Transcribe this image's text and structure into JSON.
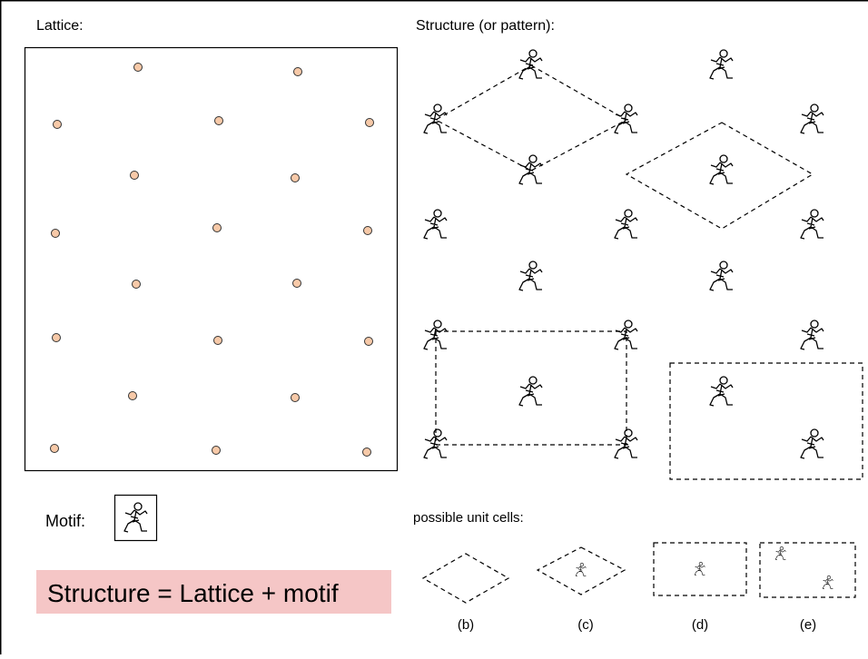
{
  "lattice_label": "Lattice:",
  "structure_label": "Structure (or pattern):",
  "motif_label": "Motif:",
  "equation": "Structure = Lattice + motif",
  "unit_cells_label": "possible unit cells:",
  "cells": [
    "(b)",
    "(c)",
    "(d)",
    "(e)"
  ]
}
